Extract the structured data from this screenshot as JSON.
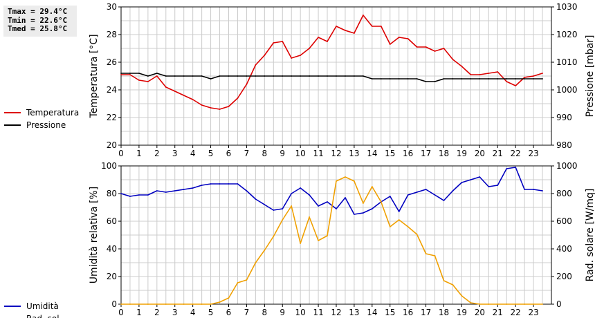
{
  "stats": {
    "tmax": "Tmax = 29.4°C",
    "tmin": "Tmin = 22.6°C",
    "tmed": "Tmed = 25.8°C"
  },
  "colors": {
    "temp": "#dd0000",
    "press": "#000000",
    "hum": "#0000c0",
    "rad": "#f0a000",
    "grid": "#cccccc"
  },
  "chart_data": [
    {
      "type": "line",
      "xlabel": "",
      "ylabel": "Temperatura [°C]",
      "y2label": "Pressione [mbar]",
      "xlim": [
        0,
        24
      ],
      "ylim": [
        20,
        30
      ],
      "y2lim": [
        980,
        1030
      ],
      "xticks": [
        "0",
        "1",
        "2",
        "3",
        "4",
        "5",
        "6",
        "7",
        "8",
        "9",
        "10",
        "11",
        "12",
        "13",
        "14",
        "15",
        "16",
        "17",
        "18",
        "19",
        "20",
        "21",
        "22",
        "23"
      ],
      "yticks": [
        "20",
        "22",
        "24",
        "26",
        "28",
        "30"
      ],
      "y2ticks": [
        "980",
        "990",
        "1000",
        "1010",
        "1020",
        "1030"
      ],
      "grid": true,
      "legend": "left",
      "series": [
        {
          "name": "Temperatura",
          "axis": "left",
          "x": [
            0,
            0.5,
            1,
            1.5,
            2,
            2.5,
            3,
            3.5,
            4,
            4.5,
            5,
            5.5,
            6,
            6.5,
            7,
            7.5,
            8,
            8.5,
            9,
            9.5,
            10,
            10.5,
            11,
            11.5,
            12,
            12.5,
            13,
            13.5,
            14,
            14.5,
            15,
            15.5,
            16,
            16.5,
            17,
            17.5,
            18,
            18.5,
            19,
            19.5,
            20,
            20.5,
            21,
            21.5,
            22,
            22.5,
            23,
            23.5
          ],
          "values": [
            25.1,
            25.1,
            24.7,
            24.6,
            25.0,
            24.2,
            23.9,
            23.6,
            23.3,
            22.9,
            22.7,
            22.6,
            22.8,
            23.4,
            24.4,
            25.8,
            26.5,
            27.4,
            27.5,
            26.3,
            26.5,
            27.0,
            27.8,
            27.5,
            28.6,
            28.3,
            28.1,
            29.4,
            28.6,
            28.6,
            27.3,
            27.8,
            27.7,
            27.1,
            27.1,
            26.8,
            27.0,
            26.2,
            25.7,
            25.1,
            25.1,
            25.2,
            25.3,
            24.6,
            24.3,
            24.9,
            25.0,
            25.2
          ]
        },
        {
          "name": "Pressione",
          "axis": "right",
          "x": [
            0,
            0.5,
            1,
            1.5,
            2,
            2.5,
            3,
            3.5,
            4,
            4.5,
            5,
            5.5,
            6,
            6.5,
            7,
            7.5,
            8,
            8.5,
            9,
            9.5,
            10,
            10.5,
            11,
            11.5,
            12,
            12.5,
            13,
            13.5,
            14,
            14.5,
            15,
            15.5,
            16,
            16.5,
            17,
            17.5,
            18,
            18.5,
            19,
            19.5,
            20,
            20.5,
            21,
            21.5,
            22,
            22.5,
            23,
            23.5
          ],
          "values": [
            1006,
            1006,
            1006,
            1005,
            1006,
            1005,
            1005,
            1005,
            1005,
            1005,
            1004,
            1005,
            1005,
            1005,
            1005,
            1005,
            1005,
            1005,
            1005,
            1005,
            1005,
            1005,
            1005,
            1005,
            1005,
            1005,
            1005,
            1005,
            1004,
            1004,
            1004,
            1004,
            1004,
            1004,
            1003,
            1003,
            1004,
            1004,
            1004,
            1004,
            1004,
            1004,
            1004,
            1004,
            1004,
            1004,
            1004,
            1004
          ]
        }
      ]
    },
    {
      "type": "line",
      "xlabel": "",
      "ylabel": "Umidità relativa [%]",
      "y2label": "Rad. solare [W/mq]",
      "xlim": [
        0,
        24
      ],
      "ylim": [
        0,
        100
      ],
      "y2lim": [
        0,
        1000
      ],
      "xticks": [
        "0",
        "1",
        "2",
        "3",
        "4",
        "5",
        "6",
        "7",
        "8",
        "9",
        "10",
        "11",
        "12",
        "13",
        "14",
        "15",
        "16",
        "17",
        "18",
        "19",
        "20",
        "21",
        "22",
        "23"
      ],
      "yticks": [
        "0",
        "20",
        "40",
        "60",
        "80",
        "100"
      ],
      "y2ticks": [
        "0",
        "200",
        "400",
        "600",
        "800",
        "1000"
      ],
      "grid": true,
      "legend": "left",
      "series": [
        {
          "name": "Umidità",
          "axis": "left",
          "x": [
            0,
            0.5,
            1,
            1.5,
            2,
            2.5,
            3,
            3.5,
            4,
            4.5,
            5,
            5.5,
            6,
            6.5,
            7,
            7.5,
            8,
            8.5,
            9,
            9.5,
            10,
            10.5,
            11,
            11.5,
            12,
            12.5,
            13,
            13.5,
            14,
            14.5,
            15,
            15.5,
            16,
            16.5,
            17,
            17.5,
            18,
            18.5,
            19,
            19.5,
            20,
            20.5,
            21,
            21.5,
            22,
            22.5,
            23,
            23.5
          ],
          "values": [
            80,
            78,
            79,
            79,
            82,
            81,
            82,
            83,
            84,
            86,
            87,
            87,
            87,
            87,
            82,
            76,
            72,
            68,
            69,
            80,
            84,
            79,
            71,
            74,
            69,
            77,
            65,
            66,
            69,
            74,
            78,
            67,
            79,
            81,
            83,
            79,
            75,
            82,
            88,
            90,
            92,
            85,
            86,
            98,
            99,
            83,
            83,
            82
          ]
        },
        {
          "name": "Rad. sol.",
          "axis": "right",
          "x": [
            0,
            0.5,
            1,
            1.5,
            2,
            2.5,
            3,
            3.5,
            4,
            4.5,
            5,
            5.5,
            6,
            6.5,
            7,
            7.5,
            8,
            8.5,
            9,
            9.5,
            10,
            10.5,
            11,
            11.5,
            12,
            12.5,
            13,
            13.5,
            14,
            14.5,
            15,
            15.5,
            16,
            16.5,
            17,
            17.5,
            18,
            18.5,
            19,
            19.5,
            20,
            20.5,
            21,
            21.5,
            22,
            22.5,
            23,
            23.5
          ],
          "values": [
            0,
            0,
            0,
            0,
            0,
            0,
            0,
            0,
            0,
            0,
            0,
            15,
            45,
            155,
            175,
            300,
            390,
            490,
            610,
            710,
            440,
            630,
            460,
            495,
            890,
            920,
            890,
            730,
            850,
            740,
            560,
            610,
            560,
            505,
            365,
            350,
            170,
            140,
            60,
            10,
            0,
            0,
            0,
            0,
            0,
            0,
            0,
            0
          ]
        }
      ]
    }
  ]
}
